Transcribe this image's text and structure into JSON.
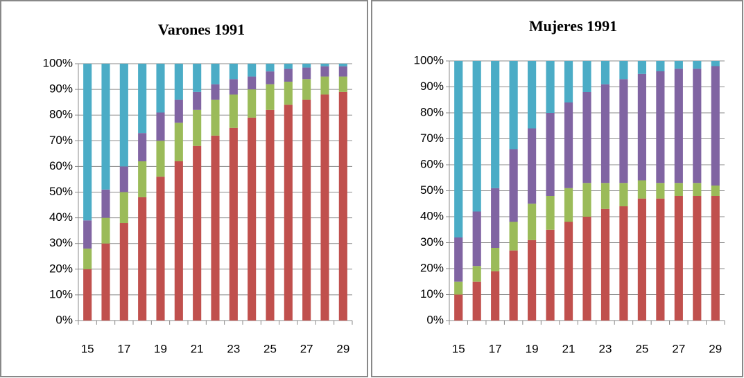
{
  "chart_data": [
    {
      "type": "bar",
      "stacked": true,
      "title": "Varones 1991",
      "categories": [
        15,
        null,
        17,
        null,
        19,
        null,
        21,
        null,
        23,
        null,
        25,
        null,
        27,
        null,
        29
      ],
      "series": [
        {
          "color": "#c0504d",
          "values": [
            20,
            30,
            38,
            48,
            56,
            62,
            68,
            72,
            75,
            79,
            82,
            84,
            86,
            88,
            89
          ]
        },
        {
          "color": "#9bbb59",
          "values": [
            8,
            10,
            12,
            14,
            14,
            15,
            14,
            14,
            13,
            11,
            10,
            9,
            8,
            7,
            6
          ]
        },
        {
          "color": "#8064a2",
          "values": [
            11,
            11,
            10,
            11,
            11,
            9,
            7,
            6,
            6,
            5,
            5,
            5,
            4.5,
            4,
            4
          ]
        },
        {
          "color": "#4bacc6",
          "values": [
            61,
            49,
            40,
            27,
            19,
            14,
            11,
            8,
            6,
            5,
            3,
            2,
            1.5,
            1,
            1
          ]
        }
      ],
      "ylim": [
        0,
        100
      ],
      "yticks": [
        {
          "value": 0,
          "label": "0%"
        },
        {
          "value": 10,
          "label": "10%"
        },
        {
          "value": 20,
          "label": "20%"
        },
        {
          "value": 30,
          "label": "30%"
        },
        {
          "value": 40,
          "label": "40%"
        },
        {
          "value": 50,
          "label": "50%"
        },
        {
          "value": 60,
          "label": "60%"
        },
        {
          "value": 70,
          "label": "70%"
        },
        {
          "value": 80,
          "label": "80%"
        },
        {
          "value": 90,
          "label": "90%"
        },
        {
          "value": 100,
          "label": "100%"
        }
      ],
      "grid": true
    },
    {
      "type": "bar",
      "stacked": true,
      "title": "Mujeres 1991",
      "categories": [
        15,
        null,
        17,
        null,
        19,
        null,
        21,
        null,
        23,
        null,
        25,
        null,
        27,
        null,
        29
      ],
      "series": [
        {
          "color": "#c0504d",
          "values": [
            10,
            15,
            19,
            27,
            31,
            35,
            38,
            40,
            43,
            44,
            47,
            47,
            48,
            48,
            48
          ]
        },
        {
          "color": "#9bbb59",
          "values": [
            5,
            6,
            9,
            11,
            14,
            13,
            13,
            13,
            10,
            9,
            7,
            6,
            5,
            5,
            4
          ]
        },
        {
          "color": "#8064a2",
          "values": [
            17,
            21,
            23,
            28,
            29,
            32,
            33,
            35,
            38,
            40,
            41,
            43,
            44,
            44,
            46
          ]
        },
        {
          "color": "#4bacc6",
          "values": [
            68,
            58,
            49,
            34,
            26,
            20,
            16,
            12,
            9,
            7,
            5,
            4,
            3,
            3,
            2
          ]
        }
      ],
      "ylim": [
        0,
        100
      ],
      "yticks": [
        {
          "value": 0,
          "label": "0%"
        },
        {
          "value": 10,
          "label": "10%"
        },
        {
          "value": 20,
          "label": "20%"
        },
        {
          "value": 30,
          "label": "30%"
        },
        {
          "value": 40,
          "label": "40%"
        },
        {
          "value": 50,
          "label": "50%"
        },
        {
          "value": 60,
          "label": "60%"
        },
        {
          "value": 70,
          "label": "70%"
        },
        {
          "value": 80,
          "label": "80%"
        },
        {
          "value": 90,
          "label": "90%"
        },
        {
          "value": 100,
          "label": "100%"
        }
      ],
      "grid": true
    }
  ]
}
